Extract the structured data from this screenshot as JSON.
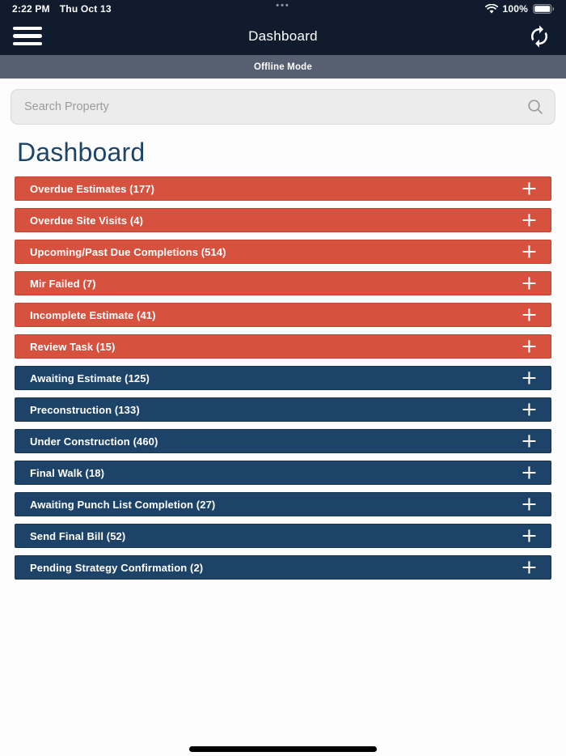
{
  "status_bar": {
    "time": "2:22 PM",
    "date": "Thu Oct 13",
    "battery_percent": "100%",
    "multitask_indicator": "•••"
  },
  "header": {
    "title": "Dashboard"
  },
  "offline_banner": {
    "label": "Offline Mode"
  },
  "search": {
    "placeholder": "Search Property",
    "value": ""
  },
  "page": {
    "title": "Dashboard"
  },
  "colors": {
    "chrome_bg": "#101c2e",
    "offline_bg": "#566070",
    "alert_red": "#d7513f",
    "alert_red_border": "#c4452f",
    "navy": "#1d4468",
    "navy_border": "#173450",
    "heading_blue": "#1d4569"
  },
  "sections": [
    {
      "label": "Overdue Estimates",
      "count": 177,
      "display": "Overdue Estimates (177)",
      "severity": "alert"
    },
    {
      "label": "Overdue Site Visits",
      "count": 4,
      "display": "Overdue Site Visits (4)",
      "severity": "alert"
    },
    {
      "label": "Upcoming/Past Due Completions",
      "count": 514,
      "display": "Upcoming/Past Due Completions (514)",
      "severity": "alert"
    },
    {
      "label": "Mir Failed",
      "count": 7,
      "display": "Mir Failed (7)",
      "severity": "alert"
    },
    {
      "label": "Incomplete Estimate",
      "count": 41,
      "display": "Incomplete Estimate (41)",
      "severity": "alert"
    },
    {
      "label": "Review Task",
      "count": 15,
      "display": "Review Task (15)",
      "severity": "alert"
    },
    {
      "label": "Awaiting Estimate",
      "count": 125,
      "display": "Awaiting Estimate (125)",
      "severity": "normal"
    },
    {
      "label": "Preconstruction",
      "count": 133,
      "display": "Preconstruction (133)",
      "severity": "normal"
    },
    {
      "label": "Under Construction",
      "count": 460,
      "display": "Under Construction (460)",
      "severity": "normal"
    },
    {
      "label": "Final Walk",
      "count": 18,
      "display": "Final Walk (18)",
      "severity": "normal"
    },
    {
      "label": "Awaiting Punch List Completion",
      "count": 27,
      "display": "Awaiting Punch List Completion (27)",
      "severity": "normal"
    },
    {
      "label": "Send Final Bill",
      "count": 52,
      "display": "Send Final Bill (52)",
      "severity": "normal"
    },
    {
      "label": "Pending Strategy Confirmation",
      "count": 2,
      "display": "Pending Strategy Confirmation (2)",
      "severity": "normal"
    }
  ],
  "expand_glyph": "+"
}
